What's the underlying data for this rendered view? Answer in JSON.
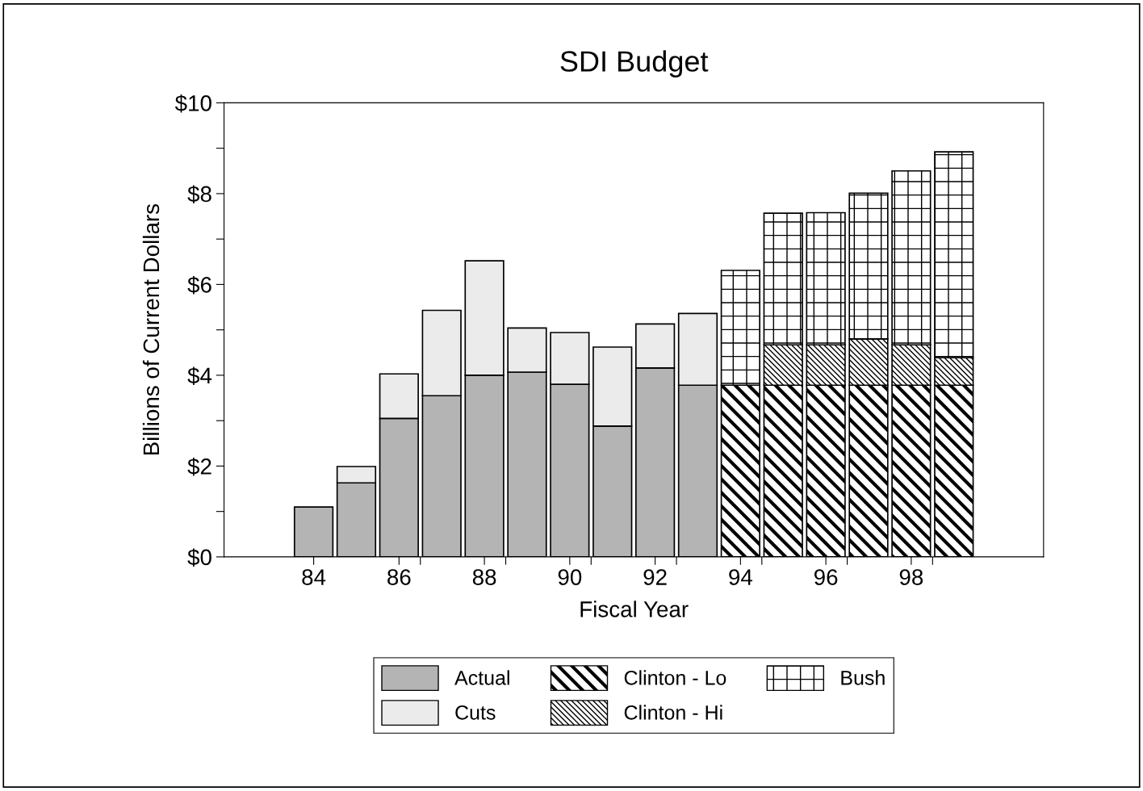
{
  "chart_data": {
    "type": "bar",
    "title": "SDI Budget",
    "xlabel": "Fiscal Year",
    "ylabel": "Billions of Current Dollars",
    "stacked": true,
    "x": [
      84,
      85,
      86,
      87,
      88,
      89,
      90,
      91,
      92,
      93,
      94,
      95,
      96,
      97,
      98,
      99
    ],
    "series": [
      {
        "name": "Actual",
        "color": "#b4b4b4",
        "values": [
          1.1,
          1.63,
          3.05,
          3.55,
          4.0,
          4.07,
          3.8,
          2.88,
          4.16,
          3.78,
          null,
          null,
          null,
          null,
          null,
          null
        ]
      },
      {
        "name": "Cuts",
        "color": "#ebebeb",
        "values": [
          null,
          0.36,
          0.98,
          1.88,
          2.52,
          0.97,
          1.14,
          1.74,
          0.97,
          1.58,
          null,
          null,
          null,
          null,
          null,
          null
        ]
      },
      {
        "name": "Clinton - Lo",
        "color": "#000000",
        "values": [
          null,
          null,
          null,
          null,
          null,
          null,
          null,
          null,
          null,
          null,
          3.78,
          3.78,
          3.78,
          3.78,
          3.78,
          3.78
        ]
      },
      {
        "name": "Clinton - Hi",
        "color": "#000000",
        "values": [
          null,
          null,
          null,
          null,
          null,
          null,
          null,
          null,
          null,
          null,
          null,
          0.89,
          0.89,
          1.02,
          0.89,
          0.61
        ]
      },
      {
        "name": "Bush",
        "color": "#000000",
        "values": [
          null,
          null,
          null,
          null,
          null,
          null,
          null,
          null,
          null,
          null,
          2.53,
          2.9,
          2.91,
          3.21,
          3.83,
          4.53
        ]
      }
    ],
    "xlim": [
      81.9,
      101.1
    ],
    "xticks": [
      {
        "value": 84,
        "label": "84"
      },
      {
        "value": 86,
        "label": "86"
      },
      {
        "value": 88,
        "label": "88"
      },
      {
        "value": 90,
        "label": "90"
      },
      {
        "value": 92,
        "label": "92"
      },
      {
        "value": 94,
        "label": "94"
      },
      {
        "value": 96,
        "label": "96"
      },
      {
        "value": 98,
        "label": "98"
      },
      {
        "value": 86.5,
        "label": null
      },
      {
        "value": 88.5,
        "label": null
      },
      {
        "value": 90.5,
        "label": null
      },
      {
        "value": 92.5,
        "label": null
      },
      {
        "value": 94.5,
        "label": null
      },
      {
        "value": 96.5,
        "label": null
      },
      {
        "value": 98.5,
        "label": null
      }
    ],
    "ylim": [
      0,
      10
    ],
    "yticks": [
      {
        "value": 0,
        "label": "$0"
      },
      {
        "value": 1,
        "label": null
      },
      {
        "value": 2,
        "label": "$2"
      },
      {
        "value": 3,
        "label": null
      },
      {
        "value": 4,
        "label": "$4"
      },
      {
        "value": 5,
        "label": null
      },
      {
        "value": 6,
        "label": "$6"
      },
      {
        "value": 7,
        "label": null
      },
      {
        "value": 8,
        "label": "$8"
      },
      {
        "value": 9,
        "label": null
      },
      {
        "value": 10,
        "label": "$10"
      }
    ],
    "grid": false,
    "legend": "bottom"
  }
}
